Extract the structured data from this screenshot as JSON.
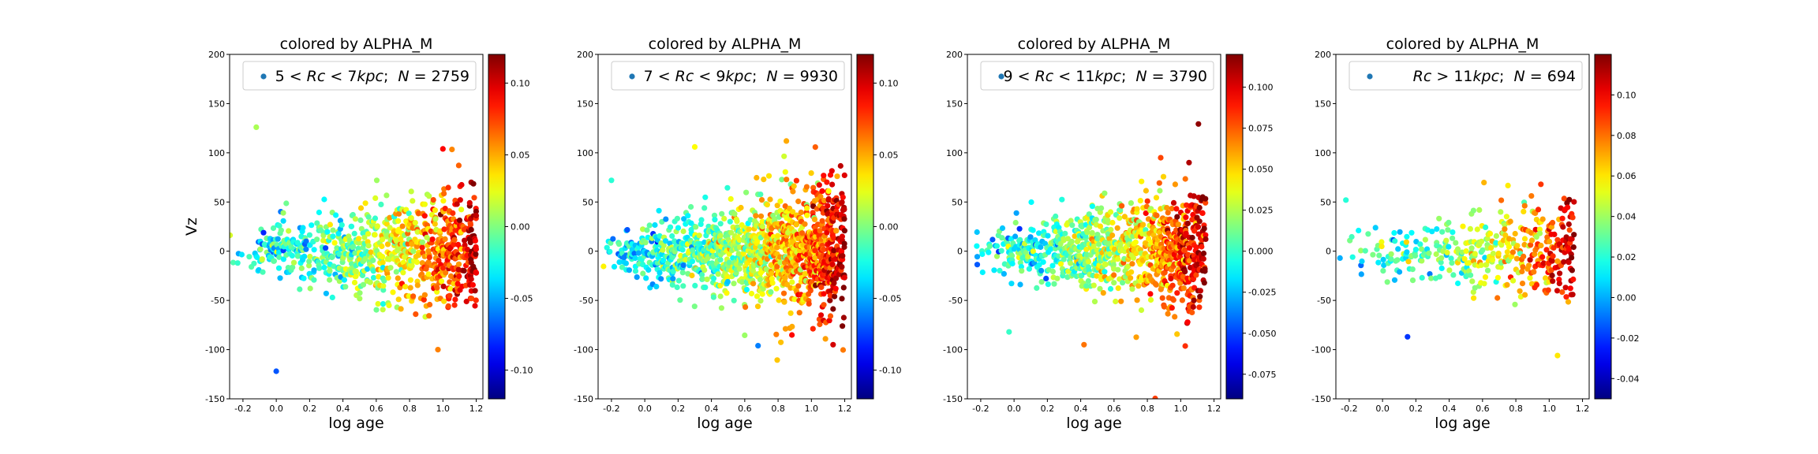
{
  "figure": {
    "background": "#ffffff",
    "colormap": "jet",
    "marker_color_legend": "#1f77b4"
  },
  "chart_data": [
    {
      "type": "scatter",
      "title": "colored by ALPHA_M",
      "xlabel": "log age",
      "ylabel": "Vz",
      "xlim": [
        -0.28,
        1.24
      ],
      "ylim": [
        -150,
        200
      ],
      "xticks": [
        "-0.2",
        "0.0",
        "0.2",
        "0.4",
        "0.6",
        "0.8",
        "1.0",
        "1.2"
      ],
      "yticks": [
        "-150",
        "-100",
        "-50",
        "0",
        "50",
        "100",
        "150",
        "200"
      ],
      "legend": {
        "prefix": "5 < ",
        "italic": "Rc",
        "mid": " < 7",
        "italic2": "kpc",
        "suffix": ";  ",
        "nlabel": "N",
        "eq": " = 2759",
        "position": "upper-right"
      },
      "colorbar": {
        "range": [
          -0.12,
          0.12
        ],
        "ticks": [
          "-0.10",
          "-0.05",
          "0.00",
          "0.05",
          "0.10"
        ],
        "tick_values": [
          -0.1,
          -0.05,
          0.0,
          0.05,
          0.1
        ]
      },
      "distribution": {
        "n_drawn": 900,
        "seed": 11,
        "xmin": -0.28,
        "xmax": 1.2,
        "ymax_spread": 55
      },
      "outliers": [
        {
          "x": -0.12,
          "y": 126,
          "c": 0.01
        },
        {
          "x": 0.0,
          "y": -122,
          "c": -0.07
        },
        {
          "x": 0.97,
          "y": -100,
          "c": 0.06
        },
        {
          "x": 1.0,
          "y": 104,
          "c": 0.09
        },
        {
          "x": 1.17,
          "y": 70,
          "c": 0.11
        }
      ]
    },
    {
      "type": "scatter",
      "title": "colored by ALPHA_M",
      "xlabel": "log age",
      "ylabel": "",
      "xlim": [
        -0.28,
        1.24
      ],
      "ylim": [
        -150,
        200
      ],
      "xticks": [
        "-0.2",
        "0.0",
        "0.2",
        "0.4",
        "0.6",
        "0.8",
        "1.0",
        "1.2"
      ],
      "yticks": [
        "-150",
        "-100",
        "-50",
        "0",
        "50",
        "100",
        "150",
        "200"
      ],
      "legend": {
        "prefix": "7 < ",
        "italic": "Rc",
        "mid": " < 9",
        "italic2": "kpc",
        "suffix": ";  ",
        "nlabel": "N",
        "eq": " = 9930",
        "position": "upper-right"
      },
      "colorbar": {
        "range": [
          -0.12,
          0.12
        ],
        "ticks": [
          "-0.10",
          "-0.05",
          "0.00",
          "0.05",
          "0.10"
        ],
        "tick_values": [
          -0.1,
          -0.05,
          0.0,
          0.05,
          0.1
        ]
      },
      "distribution": {
        "n_drawn": 1400,
        "seed": 23,
        "xmin": -0.28,
        "xmax": 1.2,
        "ymax_spread": 58
      },
      "outliers": [
        {
          "x": 0.3,
          "y": 106,
          "c": 0.03
        },
        {
          "x": 0.85,
          "y": 112,
          "c": 0.05
        },
        {
          "x": 0.68,
          "y": -96,
          "c": -0.06
        },
        {
          "x": -0.2,
          "y": 72,
          "c": -0.02
        },
        {
          "x": 1.13,
          "y": -95,
          "c": 0.1
        }
      ]
    },
    {
      "type": "scatter",
      "title": "colored by ALPHA_M",
      "xlabel": "log age",
      "ylabel": "",
      "xlim": [
        -0.28,
        1.24
      ],
      "ylim": [
        -150,
        200
      ],
      "xticks": [
        "-0.2",
        "0.0",
        "0.2",
        "0.4",
        "0.6",
        "0.8",
        "1.0",
        "1.2"
      ],
      "yticks": [
        "-150",
        "-100",
        "-50",
        "0",
        "50",
        "100",
        "150",
        "200"
      ],
      "legend": {
        "prefix": "9 < ",
        "italic": "Rc",
        "mid": " < 11",
        "italic2": "kpc",
        "suffix": ";  ",
        "nlabel": "N",
        "eq": " = 3790",
        "position": "upper-right"
      },
      "colorbar": {
        "range": [
          -0.09,
          0.12
        ],
        "ticks": [
          "-0.075",
          "-0.050",
          "-0.025",
          "0.000",
          "0.025",
          "0.050",
          "0.075",
          "0.100"
        ],
        "tick_values": [
          -0.075,
          -0.05,
          -0.025,
          0.0,
          0.025,
          0.05,
          0.075,
          0.1
        ]
      },
      "distribution": {
        "n_drawn": 1000,
        "seed": 37,
        "xmin": -0.28,
        "xmax": 1.15,
        "ymax_spread": 52
      },
      "outliers": [
        {
          "x": 0.88,
          "y": 95,
          "c": 0.08
        },
        {
          "x": 0.42,
          "y": -95,
          "c": 0.07
        },
        {
          "x": -0.03,
          "y": -82,
          "c": 0.0
        },
        {
          "x": 1.05,
          "y": 90,
          "c": 0.11
        }
      ]
    },
    {
      "type": "scatter",
      "title": "colored by ALPHA_M",
      "xlabel": "log age",
      "ylabel": "",
      "xlim": [
        -0.28,
        1.24
      ],
      "ylim": [
        -150,
        200
      ],
      "xticks": [
        "-0.2",
        "0.0",
        "0.2",
        "0.4",
        "0.6",
        "0.8",
        "1.0",
        "1.2"
      ],
      "yticks": [
        "-150",
        "-100",
        "-50",
        "0",
        "50",
        "100",
        "150",
        "200"
      ],
      "legend": {
        "prefix": "",
        "italic": "Rc",
        "mid": " > 11",
        "italic2": "kpc",
        "suffix": ";  ",
        "nlabel": "N",
        "eq": " = 694",
        "position": "upper-right"
      },
      "colorbar": {
        "range": [
          -0.05,
          0.12
        ],
        "ticks": [
          "-0.04",
          "-0.02",
          "0.00",
          "0.02",
          "0.04",
          "0.06",
          "0.08",
          "0.10"
        ],
        "tick_values": [
          -0.04,
          -0.02,
          0.0,
          0.02,
          0.04,
          0.06,
          0.08,
          0.1
        ]
      },
      "distribution": {
        "n_drawn": 420,
        "seed": 53,
        "xmin": -0.28,
        "xmax": 1.15,
        "ymax_spread": 42
      },
      "outliers": [
        {
          "x": -0.22,
          "y": 52,
          "c": 0.02
        },
        {
          "x": 0.15,
          "y": -87,
          "c": -0.02
        },
        {
          "x": 1.05,
          "y": -106,
          "c": 0.06
        },
        {
          "x": 0.95,
          "y": 68,
          "c": 0.09
        }
      ]
    }
  ]
}
